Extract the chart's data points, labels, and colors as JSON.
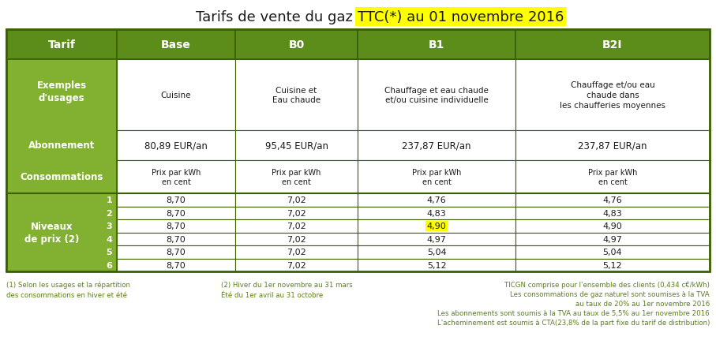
{
  "title_part1": "Tarifs de vente du gaz ",
  "title_highlight": "TTC(*) au 01 novembre 2016",
  "title_fontsize": 13,
  "green_dark": "#5c8c1a",
  "green_mid": "#72a020",
  "green_light": "#82b030",
  "white": "#ffffff",
  "black": "#1a1a1a",
  "yellow_highlight": "#ffff00",
  "border_color": "#3a6000",
  "footnote_color": "#5a8010",
  "col_headers": [
    "Tarif",
    "Base",
    "B0",
    "B1",
    "B2I"
  ],
  "row1_label": "Exemples\nd'usages",
  "row1_values": [
    "Cuisine",
    "Cuisine et\nEau chaude",
    "Chauffage et eau chaude\net/ou cuisine individuelle",
    "Chauffage et/ou eau\nchaude dans\nles chaufferies moyennes"
  ],
  "row2_label": "Abonnement",
  "row2_values": [
    "80,89 EUR/an",
    "95,45 EUR/an",
    "237,87 EUR/an",
    "237,87 EUR/an"
  ],
  "row3_label": "Consommations",
  "row3_values": [
    "Prix par kWh\nen cent",
    "Prix par kWh\nen cent",
    "Prix par kWh\nen cent",
    "Prix par kWh\nen cent"
  ],
  "levels_label": "Niveaux\nde prix (2)",
  "levels": [
    "1",
    "2",
    "3",
    "4",
    "5",
    "6"
  ],
  "base_vals": [
    "8,70",
    "8,70",
    "8,70",
    "8,70",
    "8,70",
    "8,70"
  ],
  "b0_vals": [
    "7,02",
    "7,02",
    "7,02",
    "7,02",
    "7,02",
    "7,02"
  ],
  "b1_vals": [
    "4,76",
    "4,83",
    "4,90",
    "4,97",
    "5,04",
    "5,12"
  ],
  "b2i_vals": [
    "4,76",
    "4,83",
    "4,90",
    "4,97",
    "5,04",
    "5,12"
  ],
  "b1_highlight_row": 2,
  "footnote1a": "(1) Selon les usages et la répartition",
  "footnote1b": "des consommations en hiver et été",
  "footnote2a": "(2) Hiver du 1er novembre au 31 mars",
  "footnote2b": "Été du 1er avril au 31 octobre",
  "footnote3": [
    "TICGN comprise pour l'ensemble des clients (0,434 c€/kWh)",
    "Les consommations de gaz naturel sont soumises à la TVA",
    "au taux de 20% au 1er novembre 2016",
    "Les abonnements sont soumis à la TVA au taux de 5,5% au 1er novembre 2016",
    "L'acheminement est soumis à CTA(23,8% de la part fixe du tarif de distribution)"
  ]
}
